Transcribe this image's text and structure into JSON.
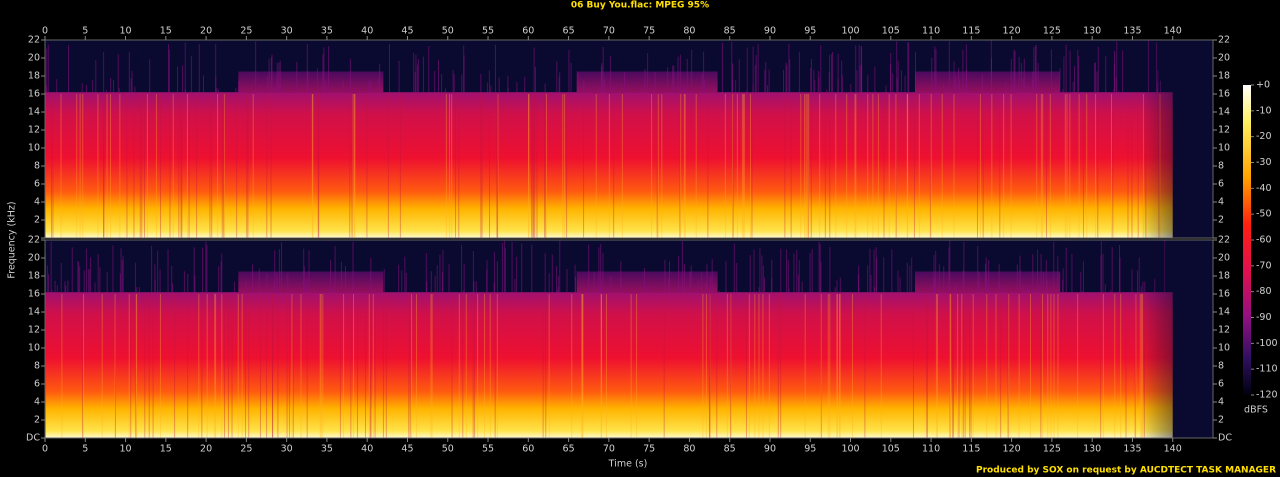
{
  "chart_data": {
    "type": "spectrogram",
    "title": "06 Buy You.flac: MPEG 95%",
    "x_label": "Time (s)",
    "y_label": "Frequency (kHz)",
    "xlim": [
      0,
      145
    ],
    "xticks": [
      0,
      5,
      10,
      15,
      20,
      25,
      30,
      35,
      40,
      45,
      50,
      55,
      60,
      65,
      70,
      75,
      80,
      85,
      90,
      95,
      100,
      105,
      110,
      115,
      120,
      125,
      130,
      135,
      140
    ],
    "ylim": [
      0,
      22
    ],
    "yticks": [
      {
        "value": 0,
        "label": "DC"
      },
      2,
      4,
      6,
      8,
      10,
      12,
      14,
      16,
      18,
      20,
      22
    ],
    "zlim": [
      -120,
      0
    ],
    "zticks": [
      {
        "value": 0,
        "label": "+0"
      },
      -10,
      -20,
      -30,
      -40,
      -50,
      -60,
      -70,
      -80,
      -90,
      -100,
      -110,
      -120
    ],
    "colorbar_label": "dBFS",
    "credit": "Produced by SOX on request by AUCDTECT TASK MANAGER"
  }
}
